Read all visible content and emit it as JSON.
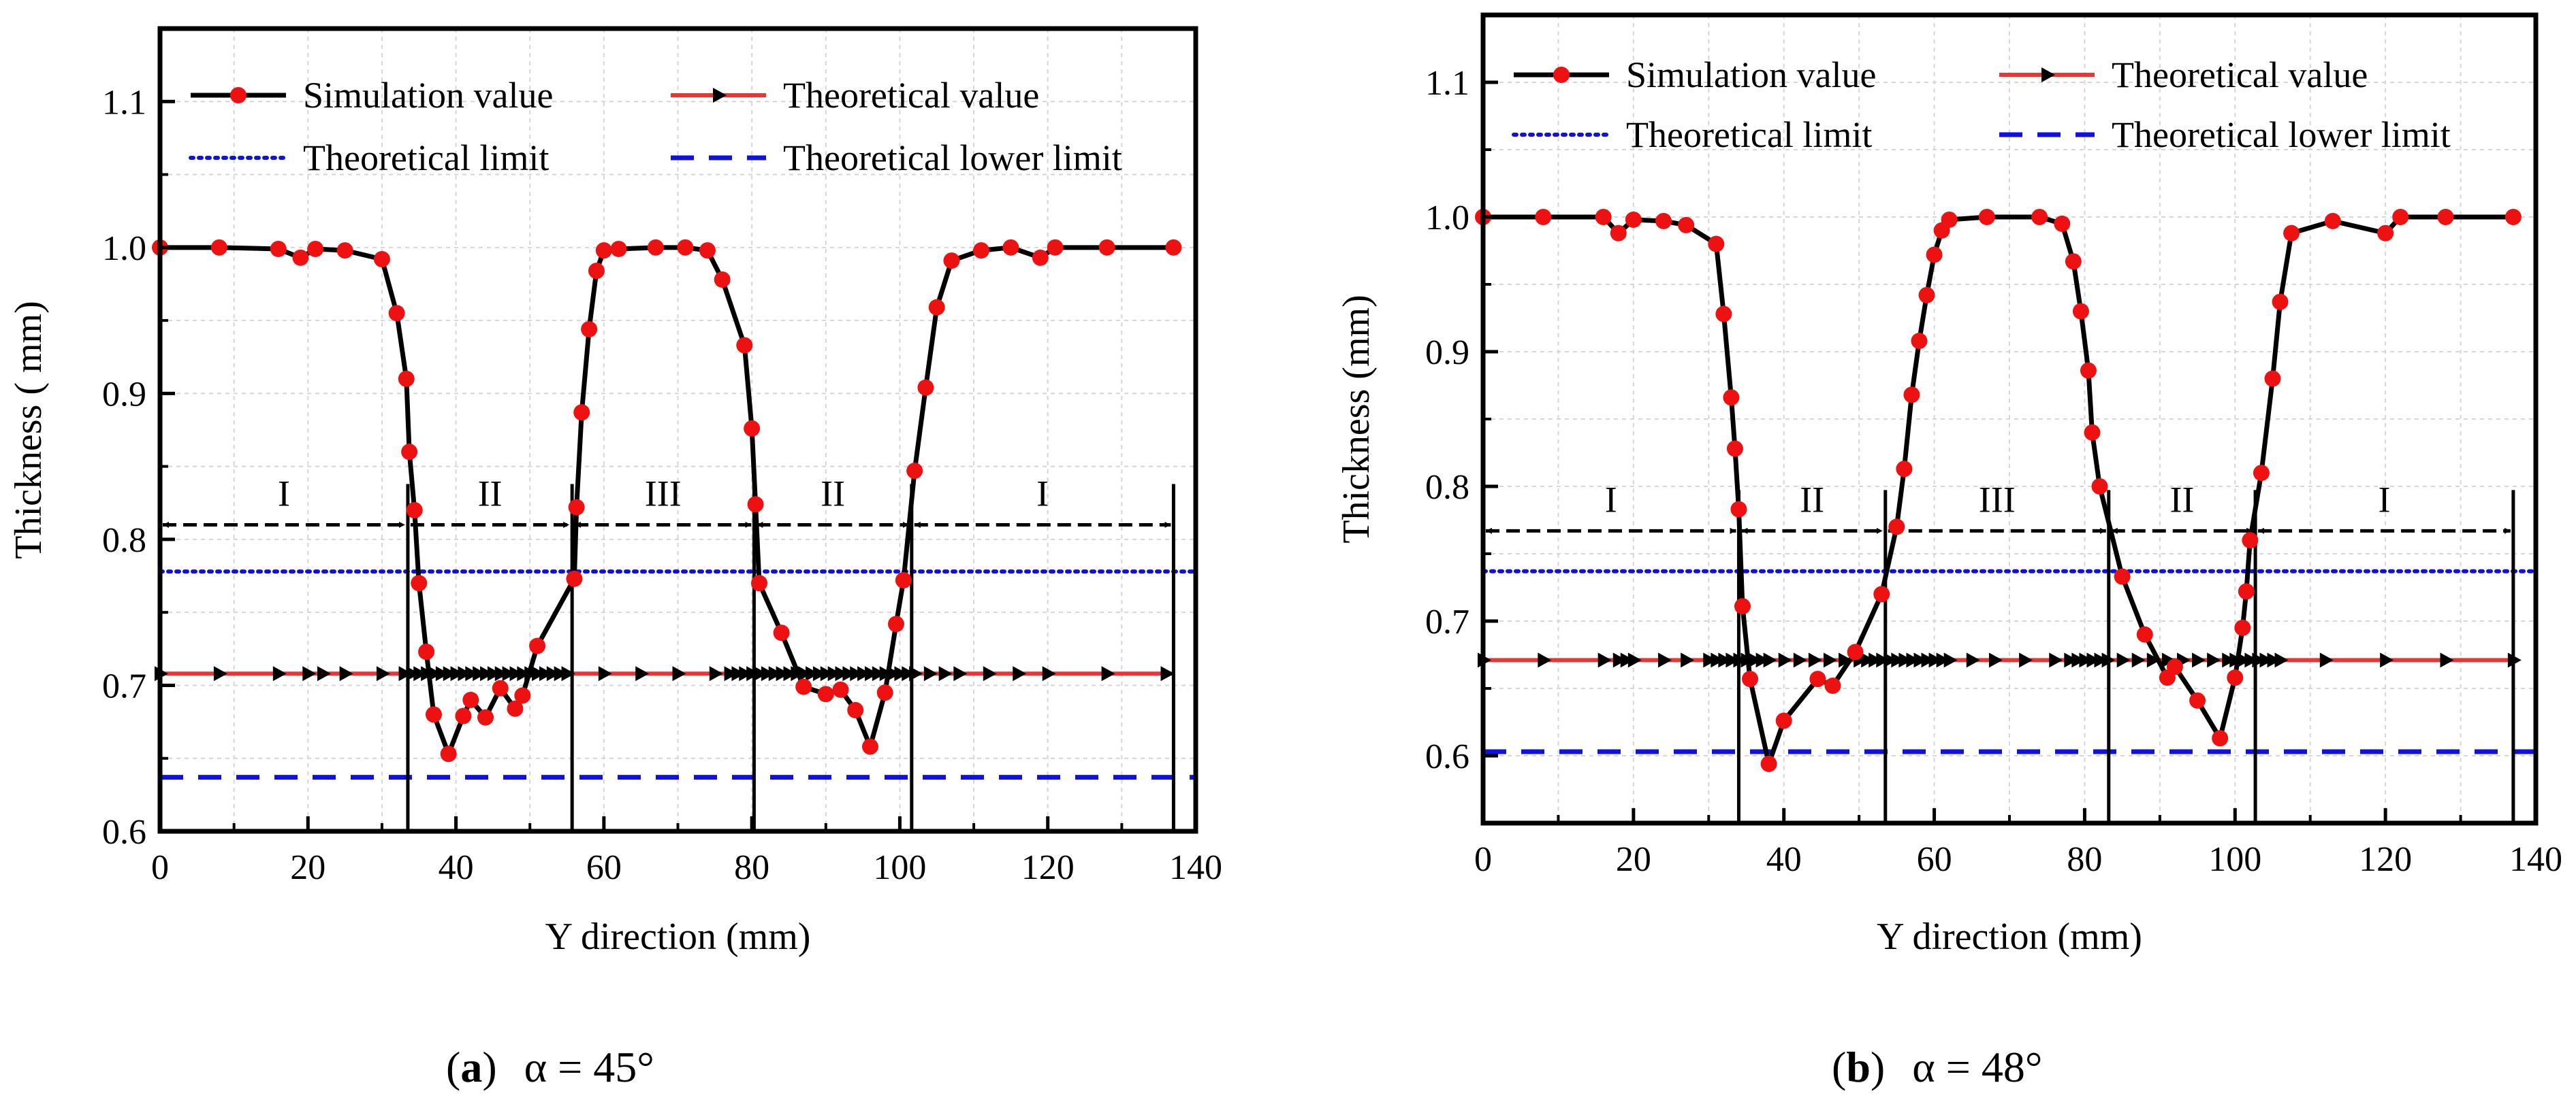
{
  "chart_data": [
    {
      "type": "line",
      "id": "a",
      "caption": {
        "letter": "a",
        "angle_text": "α = 45°"
      },
      "xlabel": "Y direction (mm)",
      "ylabel": "Thickness ( mm)",
      "xlim": [
        0,
        140
      ],
      "ylim": [
        0.6,
        1.15
      ],
      "xticks": [
        0,
        20,
        40,
        60,
        80,
        100,
        120,
        140
      ],
      "yticks": [
        0.6,
        0.7,
        0.8,
        0.9,
        1.0,
        1.1
      ],
      "grid": true,
      "legend": {
        "placement": "top",
        "entries": [
          "Simulation value",
          "Theoretical value",
          "Theoretical limit",
          "Theoretical lower limit"
        ]
      },
      "series": [
        {
          "name": "Simulation value",
          "color": "#000000",
          "marker_color": "#ee1111",
          "x": [
            0,
            8,
            16,
            19,
            21,
            25,
            30,
            32,
            33.3,
            33.7,
            34.4,
            35,
            36,
            37,
            39,
            41,
            42,
            44,
            46,
            48,
            49,
            51,
            56,
            56.3,
            57,
            58,
            59,
            60,
            62,
            67,
            71,
            74,
            76,
            79,
            80,
            80.5,
            81,
            84,
            87,
            90,
            92,
            94,
            96,
            98,
            99.5,
            100.5,
            102,
            103.5,
            105,
            107,
            111,
            115,
            119,
            121,
            128,
            137
          ],
          "y": [
            1.0,
            1.0,
            0.999,
            0.993,
            0.999,
            0.998,
            0.992,
            0.955,
            0.91,
            0.86,
            0.82,
            0.77,
            0.723,
            0.68,
            0.653,
            0.679,
            0.69,
            0.678,
            0.698,
            0.684,
            0.693,
            0.727,
            0.773,
            0.822,
            0.887,
            0.944,
            0.984,
            0.998,
            0.999,
            1.0,
            1.0,
            0.998,
            0.978,
            0.933,
            0.876,
            0.824,
            0.77,
            0.736,
            0.699,
            0.694,
            0.697,
            0.683,
            0.658,
            0.695,
            0.742,
            0.772,
            0.847,
            0.904,
            0.959,
            0.991,
            0.998,
            1.0,
            0.993,
            1.0,
            1.0,
            1.0
          ]
        },
        {
          "name": "Theoretical value",
          "color": "#ee3333",
          "y_constant": 0.708,
          "arrow_x": [
            0,
            8,
            16,
            20,
            22,
            25,
            30,
            33,
            34,
            35,
            36,
            37,
            38,
            39,
            40,
            41,
            42,
            43,
            44,
            45,
            46,
            47,
            48,
            49,
            50,
            51,
            52,
            53,
            54,
            55,
            60,
            65,
            70,
            75,
            77,
            78,
            79,
            80,
            81,
            82,
            83,
            84,
            85,
            86,
            87,
            88,
            89,
            90,
            91,
            92,
            93,
            94,
            95,
            96,
            97,
            98,
            99,
            100,
            101,
            102,
            104,
            106,
            108,
            112,
            116,
            120,
            128,
            136
          ]
        },
        {
          "name": "Theoretical limit",
          "color": "#1111dd",
          "y_constant": 0.778
        },
        {
          "name": "Theoretical lower limit",
          "color": "#1111dd",
          "y_constant": 0.637
        }
      ],
      "regions": {
        "y": 0.81,
        "boundaries": [
          0,
          33.5,
          55.7,
          80.3,
          101.6,
          137
        ],
        "labels": [
          "I",
          "II",
          "III",
          "II",
          "I"
        ]
      }
    },
    {
      "type": "line",
      "id": "b",
      "caption": {
        "letter": "b",
        "angle_text": "α = 48°"
      },
      "xlabel": "Y direction (mm)",
      "ylabel": "Thickness (mm)",
      "xlim": [
        0,
        140
      ],
      "ylim": [
        0.55,
        1.15
      ],
      "xticks": [
        0,
        20,
        40,
        60,
        80,
        100,
        120,
        140
      ],
      "yticks": [
        0.6,
        0.7,
        0.8,
        0.9,
        1.0,
        1.1
      ],
      "grid": true,
      "legend": {
        "placement": "top",
        "entries": [
          "Simulation value",
          "Theoretical value",
          "Theoretical limit",
          "Theoretical lower limit"
        ]
      },
      "series": [
        {
          "name": "Simulation value",
          "color": "#000000",
          "marker_color": "#ee1111",
          "x": [
            0,
            8,
            16,
            18,
            20,
            24,
            27,
            31,
            32,
            33,
            33.5,
            34,
            34.5,
            35.5,
            38,
            40,
            44.5,
            46.5,
            49.5,
            53,
            55,
            56,
            57,
            58,
            59,
            60,
            61,
            62,
            67,
            74,
            77,
            78.5,
            79.5,
            80.5,
            81,
            82,
            85,
            88,
            91,
            92,
            95,
            98,
            100,
            101,
            101.5,
            102,
            103.5,
            105,
            106,
            107.5,
            113,
            120,
            122,
            128,
            137
          ],
          "y": [
            1.0,
            1.0,
            1.0,
            0.988,
            0.998,
            0.997,
            0.994,
            0.98,
            0.928,
            0.866,
            0.828,
            0.783,
            0.711,
            0.657,
            0.594,
            0.626,
            0.657,
            0.652,
            0.677,
            0.72,
            0.77,
            0.813,
            0.868,
            0.908,
            0.942,
            0.972,
            0.99,
            0.998,
            1.0,
            1.0,
            0.995,
            0.967,
            0.93,
            0.886,
            0.84,
            0.8,
            0.733,
            0.69,
            0.658,
            0.666,
            0.641,
            0.613,
            0.658,
            0.695,
            0.722,
            0.76,
            0.81,
            0.88,
            0.937,
            0.988,
            0.997,
            0.988,
            1.0,
            1.0,
            1.0
          ]
        },
        {
          "name": "Theoretical value",
          "color": "#ee3333",
          "y_constant": 0.671,
          "arrow_x": [
            0,
            8,
            16,
            18,
            19,
            20,
            24,
            27,
            30,
            31,
            32,
            33,
            34,
            35,
            36,
            37,
            38,
            40,
            42,
            44,
            46,
            48,
            50,
            51,
            52,
            53,
            54,
            55,
            56,
            57,
            58,
            59,
            60,
            61,
            62,
            65,
            68,
            72,
            76,
            78,
            79,
            80,
            81,
            82,
            83,
            85,
            87,
            89,
            91,
            93,
            95,
            97,
            99,
            100,
            101,
            102,
            103,
            104,
            105,
            106,
            112,
            120,
            128,
            137
          ]
        },
        {
          "name": "Theoretical limit",
          "color": "#1111dd",
          "y_constant": 0.737
        },
        {
          "name": "Theoretical lower limit",
          "color": "#1111dd",
          "y_constant": 0.603
        }
      ],
      "regions": {
        "y": 0.767,
        "boundaries": [
          0,
          34,
          53.5,
          83.2,
          102.7,
          137
        ],
        "labels": [
          "I",
          "II",
          "III",
          "II",
          "I"
        ]
      }
    }
  ]
}
